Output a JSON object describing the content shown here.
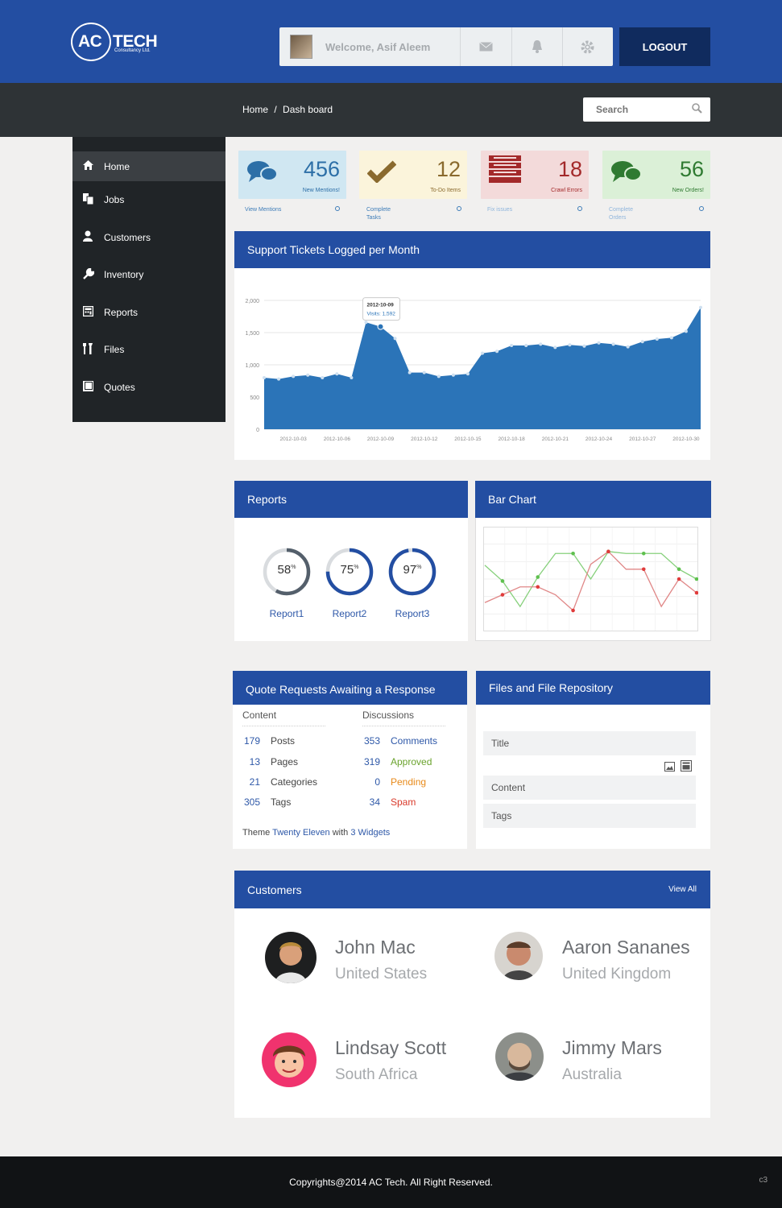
{
  "logo": {
    "brand_left": "AC",
    "brand_right": "TECH",
    "tagline": "Consultancy Ltd."
  },
  "header": {
    "welcome": "Welcome, Asif Aleem",
    "icons": [
      "mail-icon",
      "bell-icon",
      "gear-icon"
    ],
    "logout_label": "LOGOUT"
  },
  "breadcrumb": {
    "home": "Home",
    "sep": "/",
    "current": "Dash board"
  },
  "search": {
    "placeholder": "Search"
  },
  "sidebar": {
    "items": [
      {
        "label": "Home",
        "icon": "home-icon"
      },
      {
        "label": "Jobs",
        "icon": "documents-icon"
      },
      {
        "label": "Customers",
        "icon": "user-icon"
      },
      {
        "label": "Inventory",
        "icon": "wrench-icon"
      },
      {
        "label": "Reports",
        "icon": "calculator-icon"
      },
      {
        "label": "Files",
        "icon": "tools-icon"
      },
      {
        "label": "Quotes",
        "icon": "book-icon"
      }
    ]
  },
  "stats": [
    {
      "value": "456",
      "sub": "New Mentions!",
      "link": "View Mentions",
      "icon": "chat-bubbles-icon",
      "bg": "#d0e7f2",
      "color": "#2d6fa7"
    },
    {
      "value": "12",
      "sub": "To-Do Items",
      "link": "Complete Tasks",
      "icon": "checkmark-icon",
      "bg": "#fbf4db",
      "color": "#8a6a2e"
    },
    {
      "value": "18",
      "sub": "Crawl Errors",
      "link": "Fix issues",
      "icon": "list-icon",
      "bg": "#f3dada",
      "color": "#a3292a"
    },
    {
      "value": "56",
      "sub": "New Orders!",
      "link": "Complete Orders",
      "icon": "chat-bubbles-icon",
      "bg": "#dbf0d7",
      "color": "#2f7a31"
    }
  ],
  "support_chart": {
    "title": "Support Tickets Logged per Month",
    "tooltip": {
      "date": "2012-10-09",
      "label": "Visits: 1,592"
    }
  },
  "chart_data": [
    {
      "type": "area",
      "title": "Support Tickets Logged per Month",
      "x": [
        "2012-10-01",
        "2012-10-02",
        "2012-10-03",
        "2012-10-04",
        "2012-10-05",
        "2012-10-06",
        "2012-10-07",
        "2012-10-08",
        "2012-10-09",
        "2012-10-10",
        "2012-10-11",
        "2012-10-12",
        "2012-10-13",
        "2012-10-14",
        "2012-10-15",
        "2012-10-16",
        "2012-10-17",
        "2012-10-18",
        "2012-10-19",
        "2012-10-20",
        "2012-10-21",
        "2012-10-22",
        "2012-10-23",
        "2012-10-24",
        "2012-10-25",
        "2012-10-26",
        "2012-10-27",
        "2012-10-28",
        "2012-10-29",
        "2012-10-30",
        "2012-10-31"
      ],
      "series": [
        {
          "name": "Visits",
          "values": [
            800,
            780,
            820,
            840,
            800,
            860,
            800,
            1660,
            1592,
            1410,
            880,
            880,
            820,
            840,
            860,
            1180,
            1210,
            1300,
            1300,
            1320,
            1270,
            1310,
            1290,
            1340,
            1320,
            1280,
            1360,
            1400,
            1420,
            1520,
            1890
          ]
        }
      ],
      "x_ticks": [
        "2012-10-03",
        "2012-10-06",
        "2012-10-09",
        "2012-10-12",
        "2012-10-15",
        "2012-10-18",
        "2012-10-21",
        "2012-10-24",
        "2012-10-27",
        "2012-10-30"
      ],
      "y_ticks": [
        "0",
        "500",
        "1,000",
        "1,500",
        "2,000"
      ],
      "ylim": [
        0,
        2000
      ],
      "color": "#2b74b8",
      "grid": true
    },
    {
      "type": "line",
      "title": "Bar Chart",
      "x": [
        1,
        2,
        3,
        4,
        5,
        6,
        7,
        8,
        9,
        10,
        11,
        12,
        13
      ],
      "series": [
        {
          "values": [
            6.4,
            4.8,
            2.2,
            5.2,
            7.6,
            7.6,
            5.0,
            7.8,
            7.6,
            7.6,
            7.6,
            6.0,
            5.0
          ],
          "color": "#86d07b"
        },
        {
          "values": [
            2.6,
            3.4,
            4.2,
            4.2,
            3.4,
            1.8,
            6.5,
            7.8,
            6.0,
            6.0,
            2.2,
            5.0,
            3.6
          ],
          "color": "#e08787"
        }
      ],
      "ylim": [
        0,
        10
      ],
      "grid": true
    }
  ],
  "reports": {
    "title": "Reports",
    "items": [
      {
        "label": "Report1",
        "percent": 58,
        "pct_text": "58",
        "color": "#545f6b"
      },
      {
        "label": "Report2",
        "percent": 75,
        "pct_text": "75",
        "color": "#234ea2"
      },
      {
        "label": "Report3",
        "percent": 97,
        "pct_text": "97",
        "color": "#234ea2"
      }
    ],
    "pct_sign": "%"
  },
  "bar_chart": {
    "title": "Bar Chart"
  },
  "quotes": {
    "title": "Quote Requests Awaiting a Response",
    "content_header": "Content",
    "discussions_header": "Discussions",
    "content_rows": [
      {
        "count": "179",
        "label": "Posts"
      },
      {
        "count": "13",
        "label": "Pages"
      },
      {
        "count": "21",
        "label": "Categories"
      },
      {
        "count": "305",
        "label": "Tags"
      }
    ],
    "discussion_rows": [
      {
        "count": "353",
        "label": "Comments",
        "color": "#2e58a8"
      },
      {
        "count": "319",
        "label": "Approved",
        "color": "#6aa32d"
      },
      {
        "count": "0",
        "label": "Pending",
        "color": "#e88a1a"
      },
      {
        "count": "34",
        "label": "Spam",
        "color": "#d93a2b"
      }
    ],
    "theme_prefix": "Theme",
    "theme_name": "Twenty Eleven",
    "theme_with": "with",
    "theme_widgets": "3 Widgets"
  },
  "files": {
    "title": "Files and File Repository",
    "field_title": "Title",
    "field_content": "Content",
    "field_tags": "Tags",
    "icons": [
      "image-icon",
      "media-icon"
    ]
  },
  "customers": {
    "title": "Customers",
    "view_all": "View All",
    "items": [
      {
        "name": "John Mac",
        "country": "United States"
      },
      {
        "name": "Aaron Sananes",
        "country": "United Kingdom"
      },
      {
        "name": "Lindsay Scott",
        "country": "South Africa"
      },
      {
        "name": "Jimmy Mars",
        "country": "Australia"
      }
    ]
  },
  "footer": {
    "copyright": "Copyrights@2014 AC Tech. All Right Reserved.",
    "tag": "c3"
  }
}
